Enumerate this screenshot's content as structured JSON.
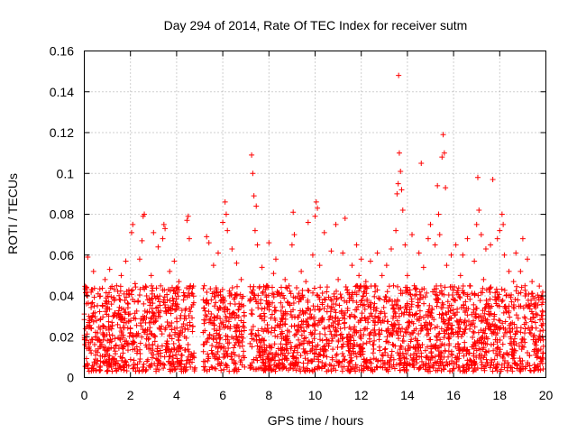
{
  "chart_data": {
    "type": "scatter",
    "title": "Day 294 of 2014, Rate Of TEC Index for receiver sutm",
    "xlabel": "GPS time / hours",
    "ylabel": "ROTI / TECUs",
    "xlim": [
      0,
      20
    ],
    "ylim": [
      0,
      0.16
    ],
    "x_ticks": [
      0,
      2,
      4,
      6,
      8,
      10,
      12,
      14,
      16,
      18,
      20
    ],
    "y_ticks": [
      0,
      0.02,
      0.04,
      0.06,
      0.08,
      0.1,
      0.12,
      0.14,
      0.16
    ],
    "x_tick_labels": [
      "0",
      "2",
      "4",
      "6",
      "8",
      "10",
      "12",
      "14",
      "16",
      "18",
      "20"
    ],
    "y_tick_labels": [
      "0",
      "0.02",
      "0.04",
      "0.06",
      "0.08",
      "0.1",
      "0.12",
      "0.14",
      "0.16"
    ],
    "grid": true,
    "marker": "+",
    "color": "#ff0000",
    "series": [
      {
        "name": "ROTI",
        "points": [
          [
            0.1,
            0.044
          ],
          [
            0.15,
            0.059
          ],
          [
            0.2,
            0.03
          ],
          [
            0.3,
            0.012
          ],
          [
            0.4,
            0.052
          ],
          [
            0.5,
            0.02
          ],
          [
            0.6,
            0.041
          ],
          [
            0.7,
            0.008
          ],
          [
            0.8,
            0.035
          ],
          [
            0.9,
            0.048
          ],
          [
            1.0,
            0.018
          ],
          [
            1.1,
            0.053
          ],
          [
            1.2,
            0.027
          ],
          [
            1.3,
            0.009
          ],
          [
            1.4,
            0.045
          ],
          [
            1.5,
            0.031
          ],
          [
            1.6,
            0.05
          ],
          [
            1.7,
            0.015
          ],
          [
            1.8,
            0.057
          ],
          [
            1.9,
            0.036
          ],
          [
            2.0,
            0.022
          ],
          [
            2.05,
            0.071
          ],
          [
            2.1,
            0.075
          ],
          [
            2.2,
            0.046
          ],
          [
            2.3,
            0.013
          ],
          [
            2.4,
            0.058
          ],
          [
            2.5,
            0.067
          ],
          [
            2.55,
            0.079
          ],
          [
            2.6,
            0.08
          ],
          [
            2.7,
            0.04
          ],
          [
            2.8,
            0.016
          ],
          [
            2.9,
            0.05
          ],
          [
            3.0,
            0.071
          ],
          [
            3.1,
            0.028
          ],
          [
            3.2,
            0.064
          ],
          [
            3.3,
            0.012
          ],
          [
            3.4,
            0.068
          ],
          [
            3.45,
            0.075
          ],
          [
            3.5,
            0.073
          ],
          [
            3.6,
            0.038
          ],
          [
            3.7,
            0.052
          ],
          [
            3.8,
            0.019
          ],
          [
            3.9,
            0.057
          ],
          [
            4.0,
            0.029
          ],
          [
            4.1,
            0.047
          ],
          [
            4.2,
            0.011
          ],
          [
            4.3,
            0.038
          ],
          [
            4.45,
            0.077
          ],
          [
            4.5,
            0.079
          ],
          [
            4.55,
            0.068
          ],
          [
            4.6,
            0.045
          ],
          [
            4.7,
            0.025
          ],
          [
            4.75,
            0.012
          ],
          [
            5.2,
            0.045
          ],
          [
            5.3,
            0.069
          ],
          [
            5.4,
            0.066
          ],
          [
            5.5,
            0.038
          ],
          [
            5.6,
            0.055
          ],
          [
            5.7,
            0.015
          ],
          [
            5.8,
            0.061
          ],
          [
            5.9,
            0.042
          ],
          [
            6.0,
            0.076
          ],
          [
            6.1,
            0.086
          ],
          [
            6.15,
            0.08
          ],
          [
            6.2,
            0.072
          ],
          [
            6.3,
            0.04
          ],
          [
            6.4,
            0.063
          ],
          [
            6.5,
            0.025
          ],
          [
            6.6,
            0.056
          ],
          [
            6.7,
            0.018
          ],
          [
            6.8,
            0.048
          ],
          [
            7.2,
            0.038
          ],
          [
            7.25,
            0.109
          ],
          [
            7.3,
            0.1
          ],
          [
            7.35,
            0.089
          ],
          [
            7.4,
            0.072
          ],
          [
            7.45,
            0.084
          ],
          [
            7.5,
            0.065
          ],
          [
            7.6,
            0.03
          ],
          [
            7.7,
            0.054
          ],
          [
            7.8,
            0.016
          ],
          [
            7.9,
            0.045
          ],
          [
            8.0,
            0.066
          ],
          [
            8.1,
            0.022
          ],
          [
            8.2,
            0.051
          ],
          [
            8.3,
            0.058
          ],
          [
            8.4,
            0.011
          ],
          [
            8.5,
            0.04
          ],
          [
            8.6,
            0.029
          ],
          [
            8.7,
            0.048
          ],
          [
            8.8,
            0.019
          ],
          [
            8.9,
            0.036
          ],
          [
            9.0,
            0.065
          ],
          [
            9.05,
            0.081
          ],
          [
            9.1,
            0.07
          ],
          [
            9.2,
            0.044
          ],
          [
            9.3,
            0.025
          ],
          [
            9.4,
            0.052
          ],
          [
            9.5,
            0.014
          ],
          [
            9.6,
            0.047
          ],
          [
            9.7,
            0.076
          ],
          [
            9.8,
            0.033
          ],
          [
            9.9,
            0.06
          ],
          [
            10.0,
            0.079
          ],
          [
            10.05,
            0.086
          ],
          [
            10.1,
            0.083
          ],
          [
            10.2,
            0.055
          ],
          [
            10.3,
            0.028
          ],
          [
            10.4,
            0.071
          ],
          [
            10.5,
            0.042
          ],
          [
            10.6,
            0.018
          ],
          [
            10.7,
            0.062
          ],
          [
            10.8,
            0.036
          ],
          [
            10.9,
            0.075
          ],
          [
            11.0,
            0.048
          ],
          [
            11.1,
            0.024
          ],
          [
            11.2,
            0.061
          ],
          [
            11.3,
            0.078
          ],
          [
            11.4,
            0.043
          ],
          [
            11.5,
            0.013
          ],
          [
            11.6,
            0.055
          ],
          [
            11.7,
            0.03
          ],
          [
            11.8,
            0.065
          ],
          [
            11.9,
            0.05
          ],
          [
            12.0,
            0.058
          ],
          [
            12.1,
            0.021
          ],
          [
            12.2,
            0.047
          ],
          [
            12.3,
            0.035
          ],
          [
            12.4,
            0.057
          ],
          [
            12.5,
            0.016
          ],
          [
            12.6,
            0.042
          ],
          [
            12.7,
            0.061
          ],
          [
            12.8,
            0.028
          ],
          [
            12.9,
            0.05
          ],
          [
            13.0,
            0.038
          ],
          [
            13.1,
            0.055
          ],
          [
            13.2,
            0.022
          ],
          [
            13.3,
            0.063
          ],
          [
            13.4,
            0.045
          ],
          [
            13.5,
            0.072
          ],
          [
            13.55,
            0.09
          ],
          [
            13.6,
            0.095
          ],
          [
            13.62,
            0.148
          ],
          [
            13.65,
            0.11
          ],
          [
            13.7,
            0.101
          ],
          [
            13.75,
            0.092
          ],
          [
            13.8,
            0.082
          ],
          [
            13.9,
            0.065
          ],
          [
            14.0,
            0.05
          ],
          [
            14.1,
            0.032
          ],
          [
            14.2,
            0.07
          ],
          [
            14.3,
            0.045
          ],
          [
            14.4,
            0.018
          ],
          [
            14.5,
            0.061
          ],
          [
            14.6,
            0.105
          ],
          [
            14.7,
            0.054
          ],
          [
            14.8,
            0.027
          ],
          [
            14.9,
            0.068
          ],
          [
            15.0,
            0.075
          ],
          [
            15.1,
            0.042
          ],
          [
            15.2,
            0.065
          ],
          [
            15.3,
            0.094
          ],
          [
            15.35,
            0.08
          ],
          [
            15.4,
            0.07
          ],
          [
            15.5,
            0.108
          ],
          [
            15.55,
            0.119
          ],
          [
            15.6,
            0.11
          ],
          [
            15.65,
            0.093
          ],
          [
            15.7,
            0.055
          ],
          [
            15.8,
            0.028
          ],
          [
            15.9,
            0.06
          ],
          [
            16.0,
            0.038
          ],
          [
            16.1,
            0.065
          ],
          [
            16.2,
            0.02
          ],
          [
            16.3,
            0.05
          ],
          [
            16.4,
            0.06
          ],
          [
            16.5,
            0.032
          ],
          [
            16.6,
            0.068
          ],
          [
            16.7,
            0.045
          ],
          [
            16.8,
            0.015
          ],
          [
            16.9,
            0.057
          ],
          [
            17.0,
            0.075
          ],
          [
            17.05,
            0.098
          ],
          [
            17.1,
            0.082
          ],
          [
            17.2,
            0.07
          ],
          [
            17.3,
            0.048
          ],
          [
            17.4,
            0.063
          ],
          [
            17.5,
            0.025
          ],
          [
            17.6,
            0.065
          ],
          [
            17.7,
            0.097
          ],
          [
            17.8,
            0.038
          ],
          [
            17.9,
            0.068
          ],
          [
            18.0,
            0.072
          ],
          [
            18.1,
            0.08
          ],
          [
            18.15,
            0.075
          ],
          [
            18.2,
            0.06
          ],
          [
            18.3,
            0.034
          ],
          [
            18.4,
            0.052
          ],
          [
            18.5,
            0.016
          ],
          [
            18.6,
            0.047
          ],
          [
            18.7,
            0.061
          ],
          [
            18.8,
            0.029
          ],
          [
            18.9,
            0.052
          ],
          [
            19.0,
            0.068
          ],
          [
            19.1,
            0.04
          ],
          [
            19.2,
            0.058
          ],
          [
            19.3,
            0.022
          ],
          [
            19.4,
            0.047
          ],
          [
            19.5,
            0.035
          ],
          [
            19.6,
            0.012
          ],
          [
            19.7,
            0.038
          ],
          [
            19.75,
            0.02
          ],
          [
            19.8,
            0.008
          ],
          [
            19.85,
            0.04
          ]
        ]
      }
    ],
    "dense_band": {
      "note": "bulk of points between 0.003 and 0.045 in observed time segments",
      "segments": [
        [
          0.0,
          4.8
        ],
        [
          5.15,
          6.95
        ],
        [
          7.15,
          19.9
        ]
      ],
      "min": 0.003,
      "max": 0.045
    }
  }
}
